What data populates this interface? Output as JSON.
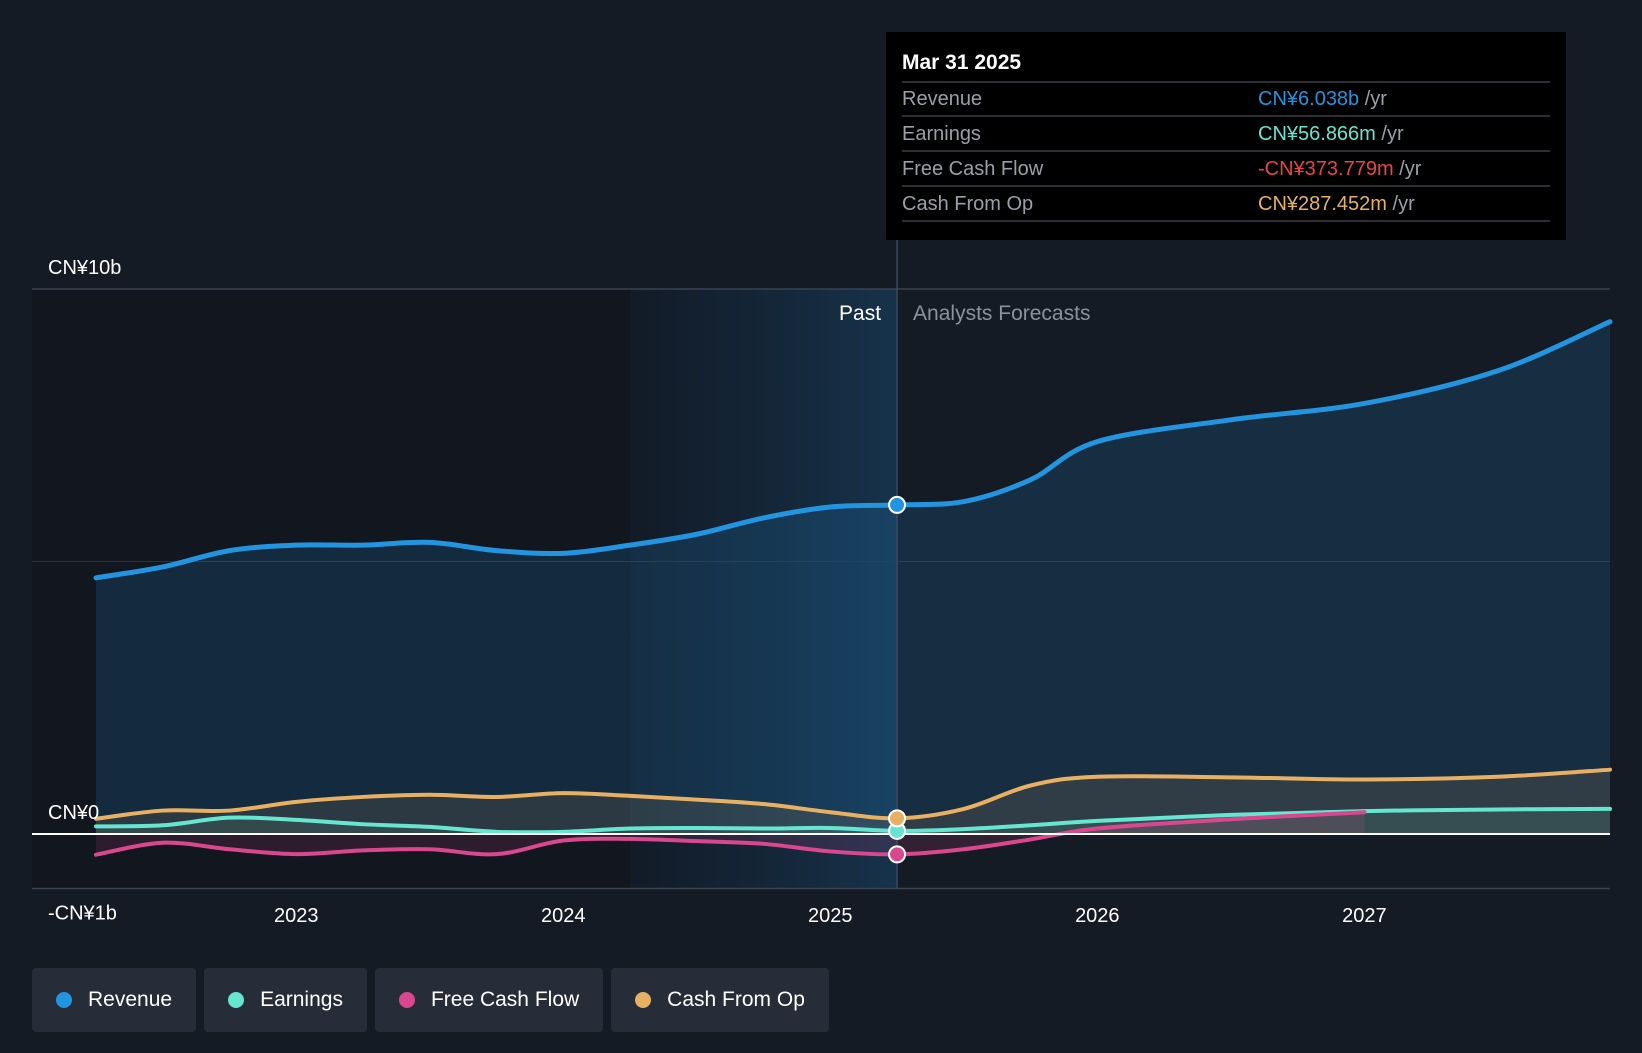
{
  "chart_data": {
    "type": "line",
    "y_axis": {
      "range": [
        -1000000000,
        10000000000
      ],
      "tick_labels": [
        {
          "value": 10000000000,
          "label": "CN¥10b"
        },
        {
          "value": 0,
          "label": "CN¥0"
        },
        {
          "value": -1000000000,
          "label": "-CN¥1b"
        }
      ]
    },
    "x_axis": {
      "range": [
        2022.25,
        2027.92
      ],
      "tick_labels": [
        {
          "value": 2023,
          "label": "2023"
        },
        {
          "value": 2024,
          "label": "2024"
        },
        {
          "value": 2025,
          "label": "2025"
        },
        {
          "value": 2026,
          "label": "2026"
        },
        {
          "value": 2027,
          "label": "2027"
        }
      ]
    },
    "divider_x": 2025.25,
    "highlight_start_x": 2024.25,
    "past_label": "Past",
    "forecast_label": "Analysts Forecasts",
    "series": [
      {
        "key": "revenue",
        "name": "Revenue",
        "color": "#2394df",
        "points": [
          [
            2022.25,
            4700000000.0
          ],
          [
            2022.5,
            4900000000.0
          ],
          [
            2022.75,
            5200000000.0
          ],
          [
            2023.0,
            5300000000.0
          ],
          [
            2023.25,
            5300000000.0
          ],
          [
            2023.5,
            5350000000.0
          ],
          [
            2023.75,
            5200000000.0
          ],
          [
            2024.0,
            5150000000.0
          ],
          [
            2024.25,
            5300000000.0
          ],
          [
            2024.5,
            5500000000.0
          ],
          [
            2024.75,
            5800000000.0
          ],
          [
            2025.0,
            6000000000.0
          ],
          [
            2025.25,
            6038000000.0
          ],
          [
            2025.5,
            6100000000.0
          ],
          [
            2025.75,
            6500000000.0
          ],
          [
            2026.0,
            7200000000.0
          ],
          [
            2026.5,
            7600000000.0
          ],
          [
            2027.0,
            7900000000.0
          ],
          [
            2027.5,
            8500000000.0
          ],
          [
            2027.92,
            9400000000.0
          ]
        ]
      },
      {
        "key": "earnings",
        "name": "Earnings",
        "color": "#66e6d0",
        "points": [
          [
            2022.25,
            140000000.0
          ],
          [
            2022.5,
            160000000.0
          ],
          [
            2022.75,
            300000000.0
          ],
          [
            2023.0,
            260000000.0
          ],
          [
            2023.25,
            180000000.0
          ],
          [
            2023.5,
            130000000.0
          ],
          [
            2023.75,
            40000000.0
          ],
          [
            2024.0,
            40000000.0
          ],
          [
            2024.25,
            100000000.0
          ],
          [
            2024.5,
            110000000.0
          ],
          [
            2024.75,
            100000000.0
          ],
          [
            2025.0,
            110000000.0
          ],
          [
            2025.25,
            56866000.0
          ],
          [
            2025.5,
            90000000.0
          ],
          [
            2025.75,
            160000000.0
          ],
          [
            2026.0,
            240000000.0
          ],
          [
            2026.5,
            350000000.0
          ],
          [
            2027.0,
            420000000.0
          ],
          [
            2027.5,
            450000000.0
          ],
          [
            2027.92,
            460000000.0
          ]
        ]
      },
      {
        "key": "fcf",
        "name": "Free Cash Flow",
        "color": "#d9478e",
        "points": [
          [
            2022.25,
            -380000000.0
          ],
          [
            2022.5,
            -160000000.0
          ],
          [
            2022.75,
            -280000000.0
          ],
          [
            2023.0,
            -370000000.0
          ],
          [
            2023.25,
            -300000000.0
          ],
          [
            2023.5,
            -280000000.0
          ],
          [
            2023.75,
            -370000000.0
          ],
          [
            2024.0,
            -120000000.0
          ],
          [
            2024.25,
            -90000000.0
          ],
          [
            2024.5,
            -130000000.0
          ],
          [
            2024.75,
            -180000000.0
          ],
          [
            2025.0,
            -320000000.0
          ],
          [
            2025.25,
            -373779000.0
          ],
          [
            2025.5,
            -280000000.0
          ],
          [
            2025.75,
            -100000000.0
          ],
          [
            2026.0,
            100000000.0
          ],
          [
            2026.5,
            270000000.0
          ],
          [
            2027.0,
            400000000.0
          ]
        ]
      },
      {
        "key": "cfo",
        "name": "Cash From Op",
        "color": "#e8b063",
        "points": [
          [
            2022.25,
            280000000.0
          ],
          [
            2022.5,
            430000000.0
          ],
          [
            2022.75,
            430000000.0
          ],
          [
            2023.0,
            590000000.0
          ],
          [
            2023.25,
            680000000.0
          ],
          [
            2023.5,
            720000000.0
          ],
          [
            2023.75,
            680000000.0
          ],
          [
            2024.0,
            750000000.0
          ],
          [
            2024.25,
            700000000.0
          ],
          [
            2024.5,
            630000000.0
          ],
          [
            2024.75,
            550000000.0
          ],
          [
            2025.0,
            400000000.0
          ],
          [
            2025.25,
            287452000.0
          ],
          [
            2025.5,
            460000000.0
          ],
          [
            2025.75,
            890000000.0
          ],
          [
            2026.0,
            1050000000.0
          ],
          [
            2026.5,
            1040000000.0
          ],
          [
            2027.0,
            1000000000.0
          ],
          [
            2027.5,
            1050000000.0
          ],
          [
            2027.92,
            1180000000.0
          ]
        ]
      }
    ],
    "tooltip": {
      "date": "Mar 31 2025",
      "rows": [
        {
          "label": "Revenue",
          "value": "CN¥6.038b",
          "unit": "/yr",
          "color": "#2394df"
        },
        {
          "label": "Earnings",
          "value": "CN¥56.866m",
          "unit": "/yr",
          "color": "#66e6d0"
        },
        {
          "label": "Free Cash Flow",
          "value": "-CN¥373.779m",
          "unit": "/yr",
          "color": "#e84545"
        },
        {
          "label": "Cash From Op",
          "value": "CN¥287.452m",
          "unit": "/yr",
          "color": "#e8b063"
        }
      ]
    }
  },
  "legend": {
    "items": [
      {
        "label": "Revenue",
        "color": "#2394df"
      },
      {
        "label": "Earnings",
        "color": "#66e6d0"
      },
      {
        "label": "Free Cash Flow",
        "color": "#d9478e"
      },
      {
        "label": "Cash From Op",
        "color": "#e8b063"
      }
    ]
  }
}
